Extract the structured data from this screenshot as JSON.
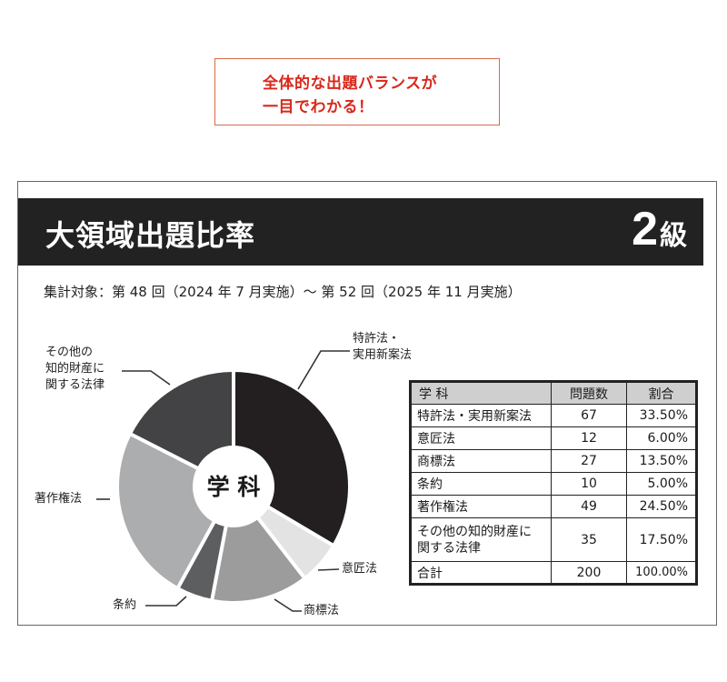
{
  "callout": {
    "line1": "全体的な出題バランスが",
    "line2": "一目でわかる！"
  },
  "header": {
    "title": "大領域出題比率",
    "grade_number": "2",
    "grade_unit": "級"
  },
  "subtitle": "集計対象：第 48 回（2024 年 7 月実施）～ 第 52 回（2025 年 11 月実施）",
  "table": {
    "headers": [
      "学 科",
      "問題数",
      "割合"
    ],
    "rows": [
      [
        "特許法・実用新案法",
        "67",
        "33.50%"
      ],
      [
        "意匠法",
        "12",
        "6.00%"
      ],
      [
        "商標法",
        "27",
        "13.50%"
      ],
      [
        "条約",
        "10",
        "5.00%"
      ],
      [
        "著作権法",
        "49",
        "24.50%"
      ],
      [
        "その他の知的財産に関する法律",
        "35",
        "17.50%"
      ]
    ],
    "total": [
      "合計",
      "200",
      "100.00%"
    ]
  },
  "chart_data": {
    "type": "pie",
    "center_label": "学 科",
    "categories": [
      "特許法・実用新案法",
      "意匠法",
      "商標法",
      "条約",
      "著作権法",
      "その他の知的財産に関する法律"
    ],
    "label_lines": [
      [
        "特許法・",
        "実用新案法"
      ],
      [
        "意匠法"
      ],
      [
        "商標法"
      ],
      [
        "条約"
      ],
      [
        "著作権法"
      ],
      [
        "その他の",
        "知的財産に",
        "関する法律"
      ]
    ],
    "values": [
      67,
      12,
      27,
      10,
      49,
      35
    ],
    "colors": [
      "#231f20",
      "#e3e3e3",
      "#9c9c9c",
      "#5c5e60",
      "#acadaf",
      "#434345"
    ]
  }
}
